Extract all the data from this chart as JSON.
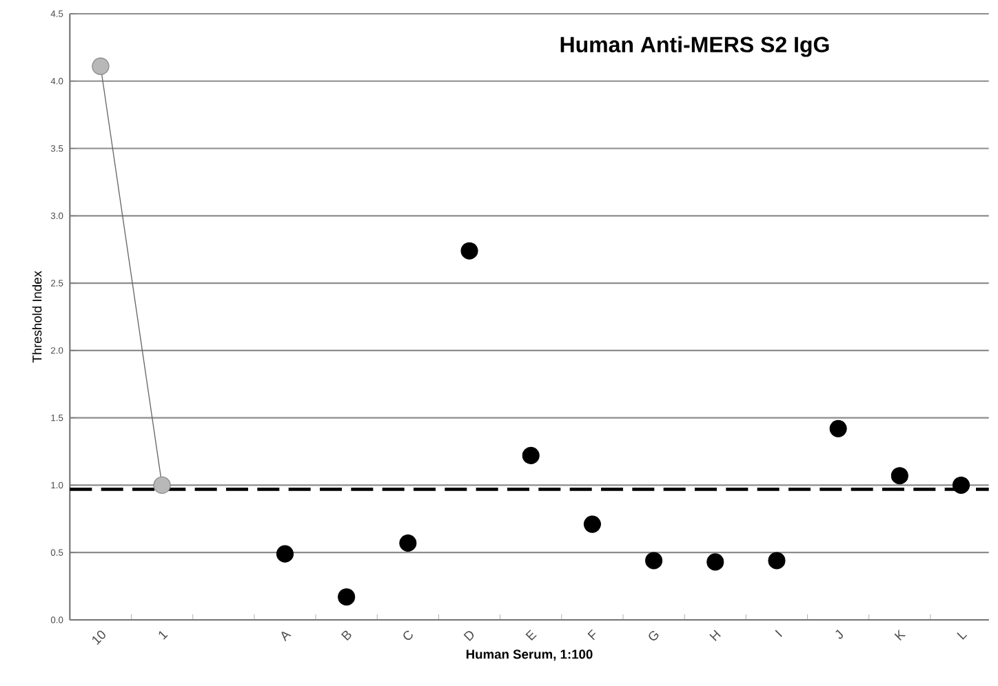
{
  "chart_data": {
    "type": "scatter",
    "title": "Human Anti-MERS S2 IgG",
    "xlabel": "Human Serum, 1:100",
    "ylabel": "Threshold Index",
    "categories": [
      "10",
      "1",
      null,
      "A",
      "B",
      "C",
      "D",
      "E",
      "F",
      "G",
      "H",
      "I",
      "J",
      "K",
      "L"
    ],
    "series": [
      {
        "type": "line",
        "color": "#b8b8b8",
        "values": [
          4.11,
          1.0,
          null,
          null,
          null,
          null,
          null,
          null,
          null,
          null,
          null,
          null,
          null,
          null,
          null
        ]
      },
      {
        "color": "#000000",
        "values": [
          null,
          null,
          null,
          0.49,
          0.17,
          0.57,
          2.74,
          1.22,
          0.71,
          0.44,
          0.43,
          0.44,
          1.42,
          1.07,
          1.0
        ]
      }
    ],
    "ylim": [
      0,
      4.5
    ],
    "yticks": [
      {
        "value": 0,
        "label": "0.0"
      },
      {
        "value": 0.5,
        "label": "0.5"
      },
      {
        "value": 1,
        "label": "1.0"
      },
      {
        "value": 1.5,
        "label": "1.5"
      },
      {
        "value": 2,
        "label": "2.0"
      },
      {
        "value": 2.5,
        "label": "2.5"
      },
      {
        "value": 3,
        "label": "3.0"
      },
      {
        "value": 3.5,
        "label": "3.5"
      },
      {
        "value": 4,
        "label": "4.0"
      },
      {
        "value": 4.5,
        "label": "4.5"
      }
    ],
    "ref_lines": [
      {
        "axis": "y",
        "value": 0.97,
        "color": "#000000",
        "line_style": "dashed"
      }
    ],
    "grid": "y",
    "marker": "circle"
  }
}
